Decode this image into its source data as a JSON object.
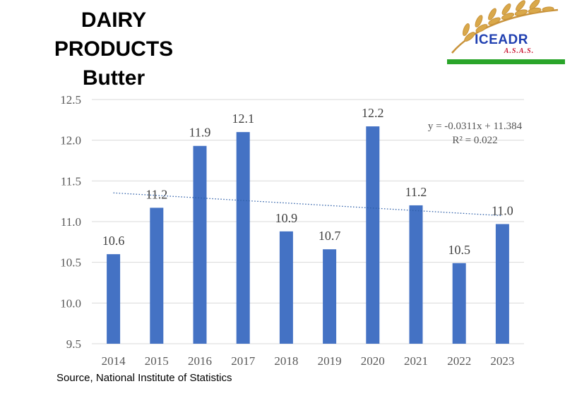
{
  "header": {
    "title_line1": "DAIRY",
    "title_line2": "PRODUCTS",
    "title_line3": "Butter"
  },
  "logo": {
    "name": "ICEADR",
    "sub": "A.S.A.S.",
    "colors": {
      "wheat": "#d9a84a",
      "green": "#2aa52a",
      "blue": "#1f3fb0",
      "red": "#c8102e"
    }
  },
  "source": "Source, National Institute of Statistics",
  "trendline": {
    "equation": "y = -0.0311x + 11.384",
    "r2": "R² = 0.022",
    "slope": -0.0311,
    "intercept": 11.384,
    "color": "#2e5fa8"
  },
  "chart_data": {
    "type": "bar",
    "categories": [
      "2014",
      "2015",
      "2016",
      "2017",
      "2018",
      "2019",
      "2020",
      "2021",
      "2022",
      "2023"
    ],
    "values": [
      10.6,
      11.17,
      11.93,
      12.1,
      10.88,
      10.66,
      12.17,
      11.2,
      10.49,
      10.97
    ],
    "labels": [
      "10.6",
      "11.2",
      "11.9",
      "12.1",
      "10.9",
      "10.7",
      "12.2",
      "11.2",
      "10.5",
      "11.0"
    ],
    "ylim": [
      9.5,
      12.5
    ],
    "yticks": [
      "9.5",
      "10.0",
      "10.5",
      "11.0",
      "11.5",
      "12.0",
      "12.5"
    ],
    "ytick_values": [
      9.5,
      10.0,
      10.5,
      11.0,
      11.5,
      12.0,
      12.5
    ],
    "grid": true,
    "bar_color": "#4472c4",
    "title": "",
    "xlabel": "",
    "ylabel": ""
  }
}
